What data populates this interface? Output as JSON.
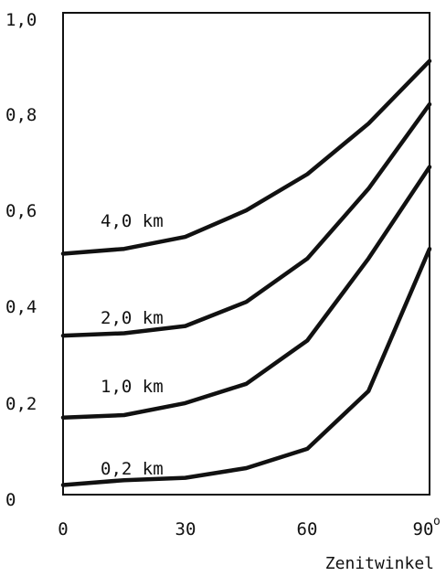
{
  "chart_data": {
    "type": "line",
    "xlabel": "Zenitwinkel",
    "ylabel": "",
    "xlim": [
      0,
      90
    ],
    "ylim": [
      0,
      1.0
    ],
    "xticks": [
      0,
      30,
      60,
      90
    ],
    "xtick_labels": [
      "0",
      "30",
      "60",
      "90"
    ],
    "x_last_tick_suffix": "o",
    "yticks": [
      0,
      0.2,
      0.4,
      0.6,
      0.8,
      1.0
    ],
    "ytick_labels": [
      "0",
      "0,2",
      "0,4",
      "0,6",
      "0,8",
      "1,0"
    ],
    "grid": false,
    "x": [
      0,
      15,
      30,
      45,
      60,
      75,
      90
    ],
    "series": [
      {
        "name": "4,0 km",
        "values": [
          0.5,
          0.51,
          0.535,
          0.59,
          0.665,
          0.77,
          0.9
        ]
      },
      {
        "name": "2,0 km",
        "values": [
          0.33,
          0.335,
          0.35,
          0.4,
          0.49,
          0.635,
          0.81
        ]
      },
      {
        "name": "1,0 km",
        "values": [
          0.16,
          0.165,
          0.19,
          0.23,
          0.32,
          0.49,
          0.68
        ]
      },
      {
        "name": "0,2 km",
        "values": [
          0.02,
          0.03,
          0.035,
          0.055,
          0.095,
          0.215,
          0.51
        ]
      }
    ]
  }
}
